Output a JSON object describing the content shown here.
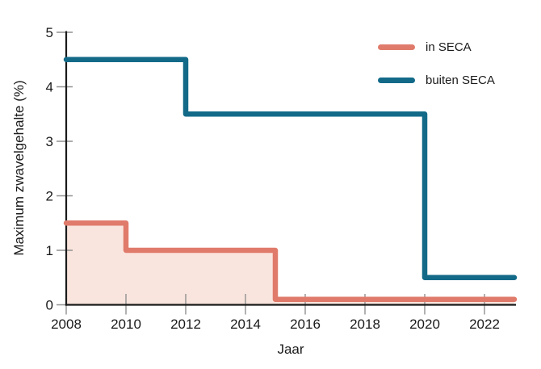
{
  "colors": {
    "background": "#ffffff",
    "axis": "#1a1a1a",
    "tick": "#919191",
    "text": "#1a1a1a",
    "in_seca": "#e07b6b",
    "in_seca_fill": "#fae5de",
    "buiten_seca": "#136a88"
  },
  "legend": {
    "items": [
      {
        "label": "in SECA",
        "color": "#e07b6b"
      },
      {
        "label": "buiten SECA",
        "color": "#136a88"
      }
    ]
  },
  "chart_data": {
    "type": "line",
    "subtype": "step",
    "title": "",
    "xlabel": "Jaar",
    "ylabel": "Maximum zwavelgehalte (%)",
    "xlim": [
      2008,
      2023
    ],
    "ylim": [
      0,
      5
    ],
    "x_ticks": [
      2008,
      2010,
      2012,
      2014,
      2016,
      2018,
      2020,
      2022
    ],
    "y_ticks": [
      0,
      1,
      2,
      3,
      4,
      5
    ],
    "grid": false,
    "legend_position": "top-right",
    "series": [
      {
        "name": "in SECA",
        "color": "#e07b6b",
        "fill": "#fae5de",
        "points": [
          [
            2008,
            1.5
          ],
          [
            2010,
            1.5
          ],
          [
            2010,
            1.0
          ],
          [
            2015,
            1.0
          ],
          [
            2015,
            0.1
          ],
          [
            2023,
            0.1
          ]
        ]
      },
      {
        "name": "buiten SECA",
        "color": "#136a88",
        "fill": null,
        "points": [
          [
            2008,
            4.5
          ],
          [
            2012,
            4.5
          ],
          [
            2012,
            3.5
          ],
          [
            2020,
            3.5
          ],
          [
            2020,
            0.5
          ],
          [
            2023,
            0.5
          ]
        ]
      }
    ]
  }
}
